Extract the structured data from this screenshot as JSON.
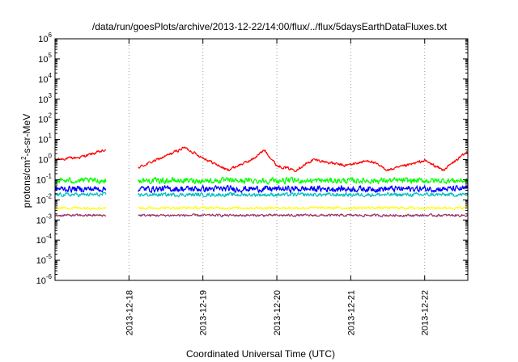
{
  "chart_data": {
    "type": "line",
    "title": "/data/run/goesPlots/archive/2013-12-22/14:00/flux/../flux/5daysEarthDataFluxes.txt",
    "xlabel": "Coordinated Universal Time (UTC)",
    "ylabel": "protons/cm²-s-sr-MeV",
    "ylabel_parts": {
      "base": "protons/cm",
      "sup": "2",
      "rest": "-s-sr-MeV"
    },
    "yscale": "log",
    "ylim": [
      1e-06,
      1000000.0
    ],
    "xlim": [
      "2013-12-17 00:00",
      "2013-12-22 14:00"
    ],
    "grid": {
      "x": true,
      "y": false,
      "style": "dotted"
    },
    "y_ticks": [
      {
        "value": 1e-06,
        "base": "10",
        "exp": "-6"
      },
      {
        "value": 1e-05,
        "base": "10",
        "exp": "-5"
      },
      {
        "value": 0.0001,
        "base": "10",
        "exp": "-4"
      },
      {
        "value": 0.001,
        "base": "10",
        "exp": "-3"
      },
      {
        "value": 0.01,
        "base": "10",
        "exp": "-2"
      },
      {
        "value": 0.1,
        "base": "10",
        "exp": "-1"
      },
      {
        "value": 1,
        "base": "10",
        "exp": "0"
      },
      {
        "value": 10.0,
        "base": "10",
        "exp": "1"
      },
      {
        "value": 100.0,
        "base": "10",
        "exp": "2"
      },
      {
        "value": 1000.0,
        "base": "10",
        "exp": "3"
      },
      {
        "value": 10000.0,
        "base": "10",
        "exp": "4"
      },
      {
        "value": 100000.0,
        "base": "10",
        "exp": "5"
      },
      {
        "value": 1000000.0,
        "base": "10",
        "exp": "6"
      }
    ],
    "x_ticks": [
      "2013-12-18",
      "2013-12-19",
      "2013-12-20",
      "2013-12-21",
      "2013-12-22"
    ],
    "data_gap": [
      "2013-12-17 16:30",
      "2013-12-18 03:00"
    ],
    "series": [
      {
        "color": "#ff0000",
        "noise": 0.06,
        "points": [
          [
            "2013-12-17 00:00",
            1.0
          ],
          [
            "2013-12-17 08:00",
            1.3
          ],
          [
            "2013-12-17 16:00",
            2.8
          ],
          [
            "2013-12-18 03:00",
            0.4
          ],
          [
            "2013-12-18 12:00",
            1.5
          ],
          [
            "2013-12-18 18:00",
            4.0
          ],
          [
            "2013-12-18 23:00",
            1.5
          ],
          [
            "2013-12-19 08:00",
            0.3
          ],
          [
            "2013-12-19 16:00",
            1.0
          ],
          [
            "2013-12-19 20:00",
            3.0
          ],
          [
            "2013-12-20 00:00",
            0.5
          ],
          [
            "2013-12-20 06:00",
            0.3
          ],
          [
            "2013-12-20 12:00",
            1.0
          ],
          [
            "2013-12-20 22:00",
            0.5
          ],
          [
            "2013-12-21 06:00",
            0.9
          ],
          [
            "2013-12-21 12:00",
            0.3
          ],
          [
            "2013-12-21 18:00",
            0.5
          ],
          [
            "2013-12-22 00:00",
            0.9
          ],
          [
            "2013-12-22 06:00",
            0.3
          ],
          [
            "2013-12-22 14:00",
            2.5
          ]
        ]
      },
      {
        "color": "#00ff00",
        "noise": 0.12,
        "points": [
          [
            "2013-12-17 00:00",
            0.09
          ],
          [
            "2013-12-22 14:00",
            0.09
          ]
        ]
      },
      {
        "color": "#0000ff",
        "noise": 0.13,
        "points": [
          [
            "2013-12-17 00:00",
            0.035
          ],
          [
            "2013-12-22 14:00",
            0.035
          ]
        ]
      },
      {
        "color": "#00bfbf",
        "noise": 0.08,
        "points": [
          [
            "2013-12-17 00:00",
            0.018
          ],
          [
            "2013-12-22 14:00",
            0.018
          ]
        ]
      },
      {
        "color": "#ffff00",
        "noise": 0.05,
        "points": [
          [
            "2013-12-17 00:00",
            0.004
          ],
          [
            "2013-12-22 14:00",
            0.004
          ]
        ]
      },
      {
        "color": "#993366",
        "noise": 0.05,
        "points": [
          [
            "2013-12-17 00:00",
            0.0017
          ],
          [
            "2013-12-22 14:00",
            0.0017
          ]
        ]
      }
    ]
  }
}
